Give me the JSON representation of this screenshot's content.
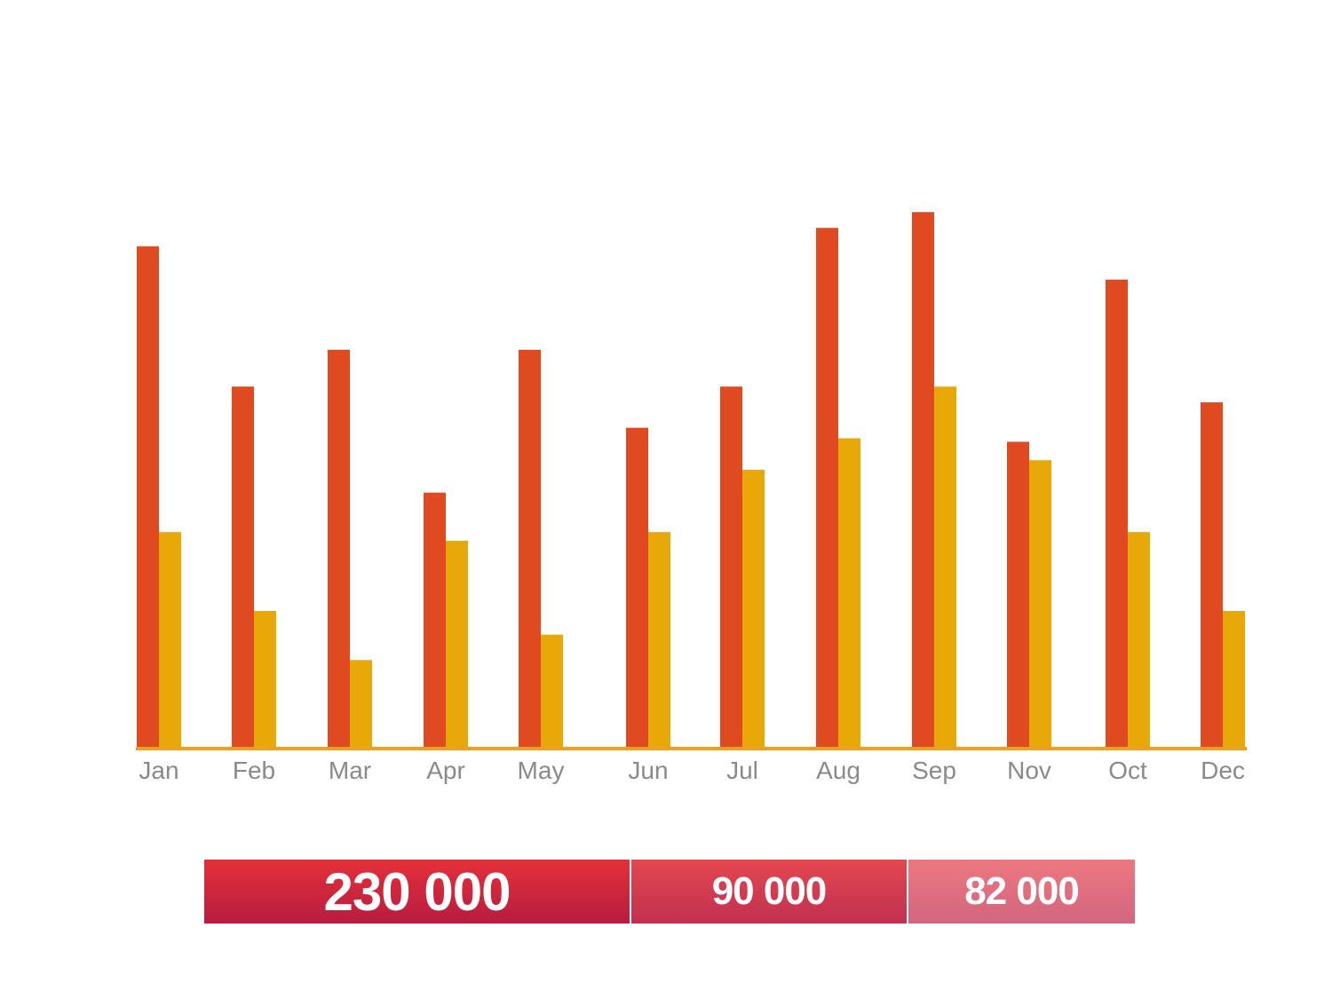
{
  "chart_data": {
    "type": "bar",
    "categories": [
      "Jan",
      "Feb",
      "Mar",
      "Apr",
      "May",
      "Jun",
      "Jul",
      "Aug",
      "Sep",
      "Nov",
      "Oct",
      "Dec"
    ],
    "series": [
      {
        "values": [
          573,
          413,
          455,
          292,
          455,
          366,
          413,
          594,
          612,
          350,
          535,
          395
        ],
        "color": "#e04a20"
      },
      {
        "values": [
          247,
          157,
          101,
          237,
          130,
          247,
          318,
          354,
          413,
          329,
          247,
          157
        ],
        "color": "#e8a808"
      }
    ],
    "ylim": [
      0,
      620
    ],
    "grid": false,
    "baseline_color": "#f0a020"
  },
  "totals": [
    {
      "label": "230 000",
      "color_top": "#e4303a",
      "color_bottom": "#b81c40"
    },
    {
      "label": "90 000",
      "color_top": "#e44850",
      "color_bottom": "#c03050"
    },
    {
      "label": "82 000",
      "color_top": "#ec7880",
      "color_bottom": "#d26680"
    }
  ]
}
